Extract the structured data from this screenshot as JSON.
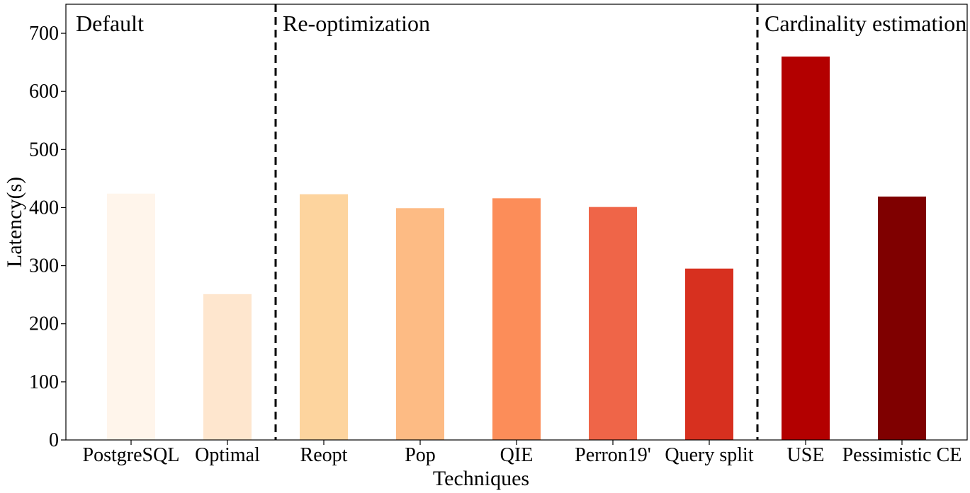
{
  "chart_data": {
    "type": "bar",
    "title": "",
    "xlabel": "Techniques",
    "ylabel": "Latency(s)",
    "ylim": [
      0,
      750
    ],
    "yticks": [
      0,
      100,
      200,
      300,
      400,
      500,
      600,
      700
    ],
    "grid": false,
    "categories": [
      "PostgreSQL",
      "Optimal",
      "Reopt",
      "Pop",
      "QIE",
      "Perron19'",
      "Query split",
      "USE",
      "Pessimistic CE"
    ],
    "values": [
      424,
      251,
      423,
      399,
      416,
      401,
      295,
      660,
      419
    ],
    "colors": [
      "#fff5eb",
      "#fee6ce",
      "#fdd49e",
      "#fdbb84",
      "#fc8d59",
      "#ef6548",
      "#d7301f",
      "#b30000",
      "#7f0000"
    ],
    "sections": [
      {
        "label": "Default"
      },
      {
        "label": "Re-optimization"
      },
      {
        "label": "Cardinality estimation"
      }
    ],
    "section_dividers_after_category": [
      1,
      6
    ]
  }
}
